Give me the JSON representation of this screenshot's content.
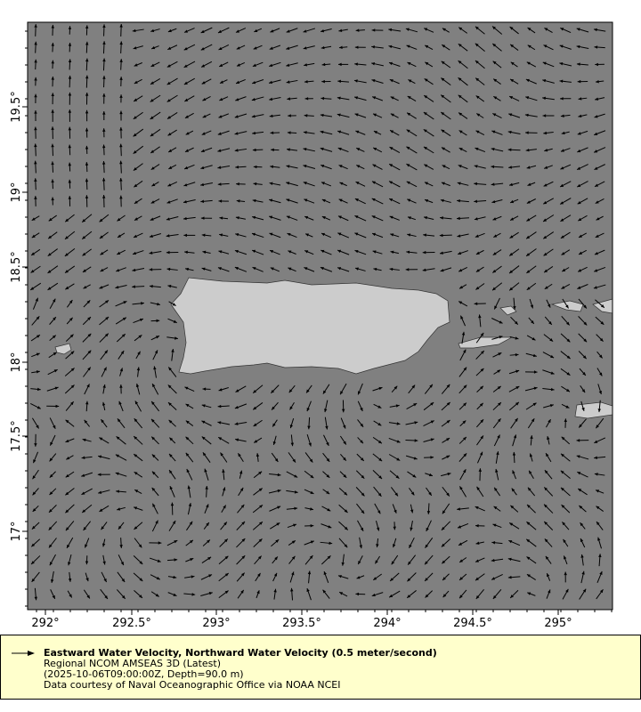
{
  "map": {
    "ocean_color": "#808080",
    "land_color": "#cccccc",
    "arrow_color": "#000000",
    "lon_ticks": [
      "292°",
      "292.5°",
      "293°",
      "293.5°",
      "294°",
      "294.5°",
      "295°"
    ],
    "lat_ticks": [
      "19.5°",
      "19°",
      "18.5°",
      "18°",
      "17.5°",
      "17°"
    ]
  },
  "legend": {
    "title": "Eastward Water Velocity, Northward Water Velocity (0.5 meter/second)",
    "line1": "Regional NCOM AMSEAS 3D (Latest)",
    "line2": "(2025-10-06T09:00:00Z, Depth=90.0 m)",
    "line3": "Data courtesy of Naval Oceanographic Office via NOAA NCEI",
    "background": "#ffffcc"
  }
}
